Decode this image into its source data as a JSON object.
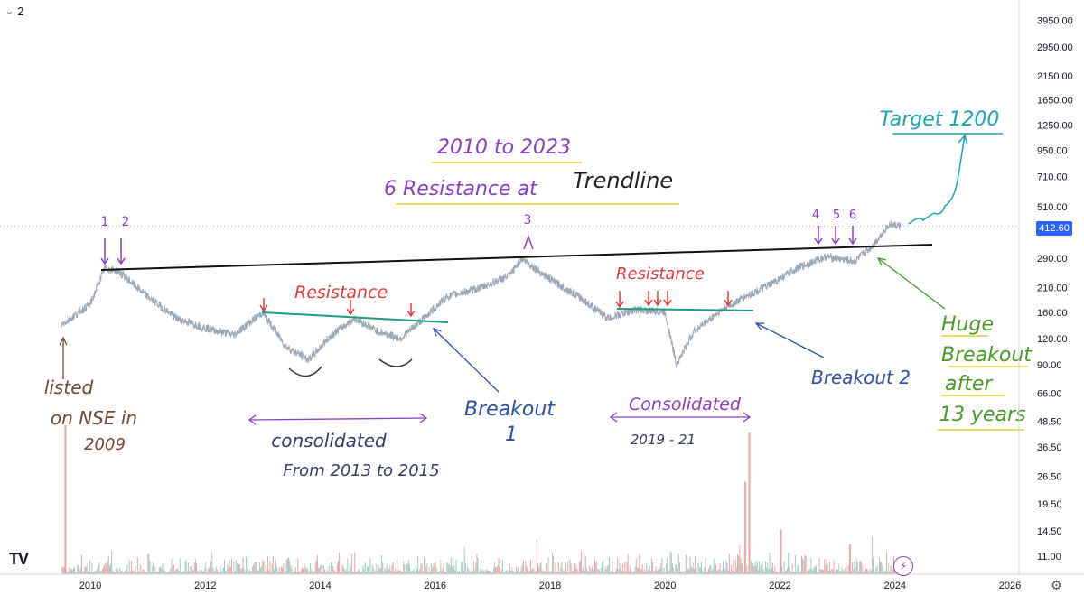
{
  "toolbar": {
    "collapse_icon": "chevron-down-icon",
    "indicator_count": "2"
  },
  "logo_text": "TV",
  "last_price": "412.60",
  "chart_data": {
    "type": "line",
    "scale": "log",
    "x_ticks": [
      "2010",
      "2012",
      "2014",
      "2016",
      "2018",
      "2020",
      "2022",
      "2024",
      "2026"
    ],
    "y_ticks": [
      "3950.00",
      "2950.00",
      "2150.00",
      "1650.00",
      "1250.00",
      "950.00",
      "710.00",
      "510.00",
      "412.60",
      "290.00",
      "210.00",
      "160.00",
      "120.00",
      "90.00",
      "66.00",
      "48.50",
      "36.50",
      "26.50",
      "19.50",
      "14.50",
      "11.00"
    ],
    "series": [
      {
        "x": [
          2009.5,
          2010.0,
          2010.25,
          2010.5,
          2011.0,
          2011.5,
          2012.0,
          2012.5,
          2013.0,
          2013.4,
          2013.8,
          2014.2,
          2014.6,
          2015.0,
          2015.4,
          2015.8,
          2016.2,
          2016.8,
          2017.3,
          2017.5,
          2018.0,
          2018.5,
          2019.0,
          2019.5,
          2020.0,
          2020.2,
          2020.5,
          2021.0,
          2021.4,
          2021.8,
          2022.3,
          2022.8,
          2023.3,
          2023.6,
          2023.9,
          2024.1
        ],
        "y": [
          140,
          175,
          260,
          250,
          190,
          150,
          135,
          125,
          160,
          110,
          95,
          125,
          150,
          130,
          120,
          150,
          190,
          210,
          240,
          290,
          230,
          190,
          150,
          165,
          160,
          90,
          130,
          165,
          190,
          215,
          260,
          295,
          280,
          330,
          420,
          412.6
        ]
      }
    ],
    "volume_spikes": [
      {
        "x": 2009.55,
        "v": 1.0
      },
      {
        "x": 2021.45,
        "v": 0.95
      },
      {
        "x": 2021.38,
        "v": 0.62
      },
      {
        "x": 2022.0,
        "v": 0.3
      },
      {
        "x": 2023.2,
        "v": 0.2
      }
    ],
    "annotations": {
      "title_line1": "2010 to 2023",
      "title_line2": "6 Resistance at",
      "title_line2b": "Trendline",
      "labels_12": [
        "1",
        "2"
      ],
      "label_3": "3",
      "labels_456": [
        "4",
        "5",
        "6"
      ],
      "resistance_left": "Resistance",
      "resistance_right": "Resistance",
      "breakout1": [
        "Breakout",
        "1"
      ],
      "breakout2": "Breakout 2",
      "listed": [
        "listed",
        "on NSE in",
        "2009"
      ],
      "consolidated_left": [
        "consolidated",
        "From 2013 to 2015"
      ],
      "consolidated_right": [
        "Consolidated",
        "2019 - 21"
      ],
      "huge": [
        "Huge",
        "Breakout",
        "after",
        "13 years"
      ],
      "target": "Target 1200"
    },
    "colors": {
      "price": "#9aa7b5",
      "trendline": "#111111",
      "resistance_line": "#1a9c86",
      "red": "#e23b3b",
      "purple": "#8a3fc2",
      "blue": "#2f4fa5",
      "brown": "#6b4a36",
      "green": "#4b9a2b",
      "cyan": "#1aa3b5",
      "yellow": "#e8d23a"
    }
  }
}
